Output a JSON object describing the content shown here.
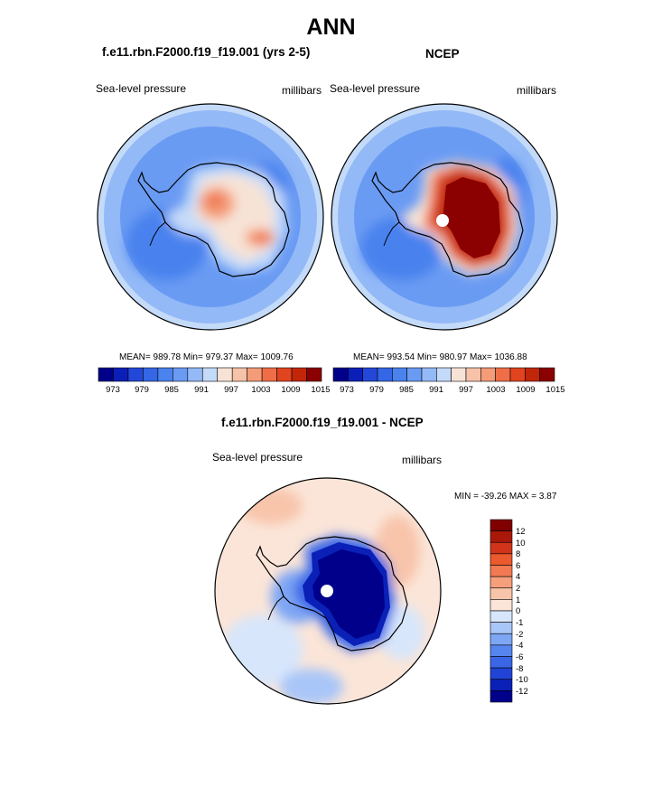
{
  "title": "ANN",
  "colors": {
    "seq": [
      "#00008b",
      "#0b1fb8",
      "#2348d8",
      "#3566e6",
      "#4a82ee",
      "#6a9bf3",
      "#93b9f7",
      "#c4daf9",
      "#f7e3d6",
      "#f6c2a8",
      "#f49c78",
      "#ef6e48",
      "#e24420",
      "#c12608",
      "#8b0000"
    ],
    "diff": [
      "#00008b",
      "#0a20b6",
      "#2144d6",
      "#3a66e6",
      "#5685ef",
      "#7ea6f4",
      "#a9c6f8",
      "#d7e6fb",
      "#fbe5d8",
      "#f8c5ab",
      "#f59f7c",
      "#f27a52",
      "#ea5a2e",
      "#d1341a",
      "#a91808",
      "#800000"
    ],
    "land_outline": "#000000"
  },
  "chart_data": [
    {
      "type": "heatmap",
      "name": "model",
      "title": "f.e11.rbn.F2000.f19_f19.001 (yrs 2-5)",
      "variable": "Sea-level pressure",
      "units": "millibars",
      "projection": "south polar stereographic",
      "stats": "MEAN= 989.78  Min= 979.37  Max= 1009.76",
      "mean": 989.78,
      "min": 979.37,
      "max": 1009.76,
      "colorbar_ticks": [
        "973",
        "979",
        "985",
        "991",
        "997",
        "1003",
        "1009",
        "1015"
      ]
    },
    {
      "type": "heatmap",
      "name": "ncep",
      "title": "NCEP",
      "variable": "Sea-level pressure",
      "units": "millibars",
      "projection": "south polar stereographic",
      "stats": "MEAN= 993.54  Min= 980.97  Max= 1036.88",
      "mean": 993.54,
      "min": 980.97,
      "max": 1036.88,
      "colorbar_ticks": [
        "973",
        "979",
        "985",
        "991",
        "997",
        "1003",
        "1009",
        "1015"
      ]
    },
    {
      "type": "heatmap",
      "name": "difference",
      "title": "f.e11.rbn.F2000.f19_f19.001 - NCEP",
      "variable": "Sea-level pressure",
      "units": "millibars",
      "projection": "south polar stereographic",
      "stats": "MIN = -39.26 MAX =   3.87",
      "min": -39.26,
      "max": 3.87,
      "colorbar_ticks": [
        "12",
        "10",
        "8",
        "6",
        "4",
        "2",
        "1",
        "0",
        "-1",
        "-2",
        "-4",
        "-6",
        "-8",
        "-10",
        "-12"
      ]
    }
  ]
}
